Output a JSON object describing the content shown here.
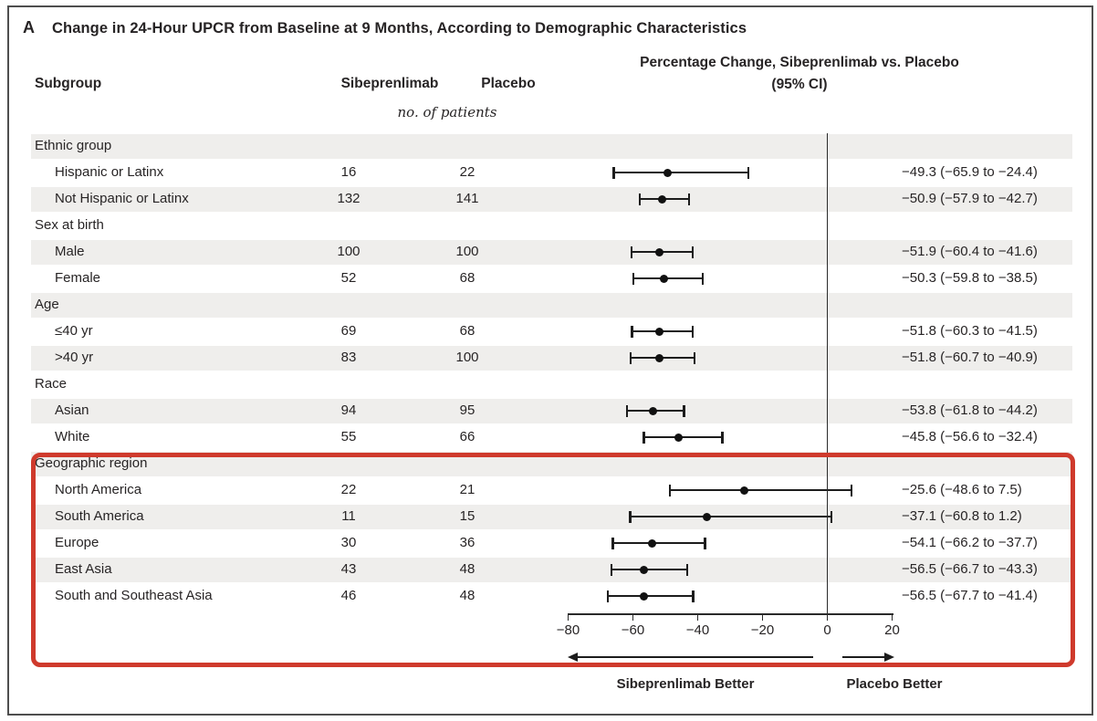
{
  "colors": {
    "accent_red": "#cf3a2c",
    "band_gray": "#efeeec",
    "ink": "#272425"
  },
  "panel": {
    "label": "A",
    "title": "Change in 24-Hour UPCR from Baseline at 9 Months, According to Demographic Characteristics"
  },
  "columns": {
    "subgroup": "Subgroup",
    "drug": "Sibeprenlimab",
    "placebo": "Placebo",
    "effect_header_line1": "Percentage Change, Sibeprenlimab vs. Placebo",
    "effect_header_line2": "(95% CI)",
    "units_note": "no. of patients"
  },
  "footer": {
    "left_arrow_label": "Sibeprenlimab Better",
    "right_arrow_label": "Placebo Better"
  },
  "chart_data": {
    "type": "forest",
    "title": "Change in 24-Hour UPCR from Baseline at 9 Months, According to Demographic Characteristics",
    "x_axis": {
      "min": -80,
      "max": 20,
      "tick_values": [
        -80,
        -60,
        -40,
        -20,
        0,
        20
      ],
      "tick_labels": [
        "−80",
        "−60",
        "−40",
        "−20",
        "0",
        "20"
      ],
      "reference_line": 0
    },
    "legend_position": "none",
    "grid": false,
    "rows": [
      {
        "kind": "group",
        "label": "Ethnic group"
      },
      {
        "kind": "item",
        "label": "Hispanic or Latinx",
        "n_sibeprenlimab": "16",
        "n_placebo": "22",
        "estimate": -49.3,
        "ci_low": -65.9,
        "ci_high": -24.4,
        "ci_text": "−49.3 (−65.9 to −24.4)"
      },
      {
        "kind": "item",
        "label": "Not Hispanic or Latinx",
        "n_sibeprenlimab": "132",
        "n_placebo": "141",
        "estimate": -50.9,
        "ci_low": -57.9,
        "ci_high": -42.7,
        "ci_text": "−50.9 (−57.9 to −42.7)"
      },
      {
        "kind": "group",
        "label": "Sex at birth"
      },
      {
        "kind": "item",
        "label": "Male",
        "n_sibeprenlimab": "100",
        "n_placebo": "100",
        "estimate": -51.9,
        "ci_low": -60.4,
        "ci_high": -41.6,
        "ci_text": "−51.9 (−60.4 to −41.6)"
      },
      {
        "kind": "item",
        "label": "Female",
        "n_sibeprenlimab": "52",
        "n_placebo": "68",
        "estimate": -50.3,
        "ci_low": -59.8,
        "ci_high": -38.5,
        "ci_text": "−50.3 (−59.8 to −38.5)"
      },
      {
        "kind": "group",
        "label": "Age"
      },
      {
        "kind": "item",
        "label": "≤40 yr",
        "n_sibeprenlimab": "69",
        "n_placebo": "68",
        "estimate": -51.8,
        "ci_low": -60.3,
        "ci_high": -41.5,
        "ci_text": "−51.8 (−60.3 to −41.5)"
      },
      {
        "kind": "item",
        "label": ">40 yr",
        "n_sibeprenlimab": "83",
        "n_placebo": "100",
        "estimate": -51.8,
        "ci_low": -60.7,
        "ci_high": -40.9,
        "ci_text": "−51.8 (−60.7 to −40.9)"
      },
      {
        "kind": "group",
        "label": "Race"
      },
      {
        "kind": "item",
        "label": "Asian",
        "n_sibeprenlimab": "94",
        "n_placebo": "95",
        "estimate": -53.8,
        "ci_low": -61.8,
        "ci_high": -44.2,
        "ci_text": "−53.8 (−61.8 to −44.2)"
      },
      {
        "kind": "item",
        "label": "White",
        "n_sibeprenlimab": "55",
        "n_placebo": "66",
        "estimate": -45.8,
        "ci_low": -56.6,
        "ci_high": -32.4,
        "ci_text": "−45.8 (−56.6 to −32.4)"
      },
      {
        "kind": "group",
        "label": "Geographic region"
      },
      {
        "kind": "item",
        "label": "North America",
        "n_sibeprenlimab": "22",
        "n_placebo": "21",
        "estimate": -25.6,
        "ci_low": -48.6,
        "ci_high": 7.5,
        "ci_text": "−25.6 (−48.6 to 7.5)"
      },
      {
        "kind": "item",
        "label": "South America",
        "n_sibeprenlimab": "11",
        "n_placebo": "15",
        "estimate": -37.1,
        "ci_low": -60.8,
        "ci_high": 1.2,
        "ci_text": "−37.1 (−60.8 to 1.2)"
      },
      {
        "kind": "item",
        "label": "Europe",
        "n_sibeprenlimab": "30",
        "n_placebo": "36",
        "estimate": -54.1,
        "ci_low": -66.2,
        "ci_high": -37.7,
        "ci_text": "−54.1 (−66.2 to −37.7)"
      },
      {
        "kind": "item",
        "label": "East Asia",
        "n_sibeprenlimab": "43",
        "n_placebo": "48",
        "estimate": -56.5,
        "ci_low": -66.7,
        "ci_high": -43.3,
        "ci_text": "−56.5 (−66.7 to −43.3)"
      },
      {
        "kind": "item",
        "label": "South and Southeast Asia",
        "n_sibeprenlimab": "46",
        "n_placebo": "48",
        "estimate": -56.5,
        "ci_low": -67.7,
        "ci_high": -41.4,
        "ci_text": "−56.5 (−67.7 to −41.4)"
      }
    ],
    "highlighted_section": "Geographic region",
    "better_labels": {
      "left": "Sibeprenlimab Better",
      "right": "Placebo Better"
    }
  }
}
